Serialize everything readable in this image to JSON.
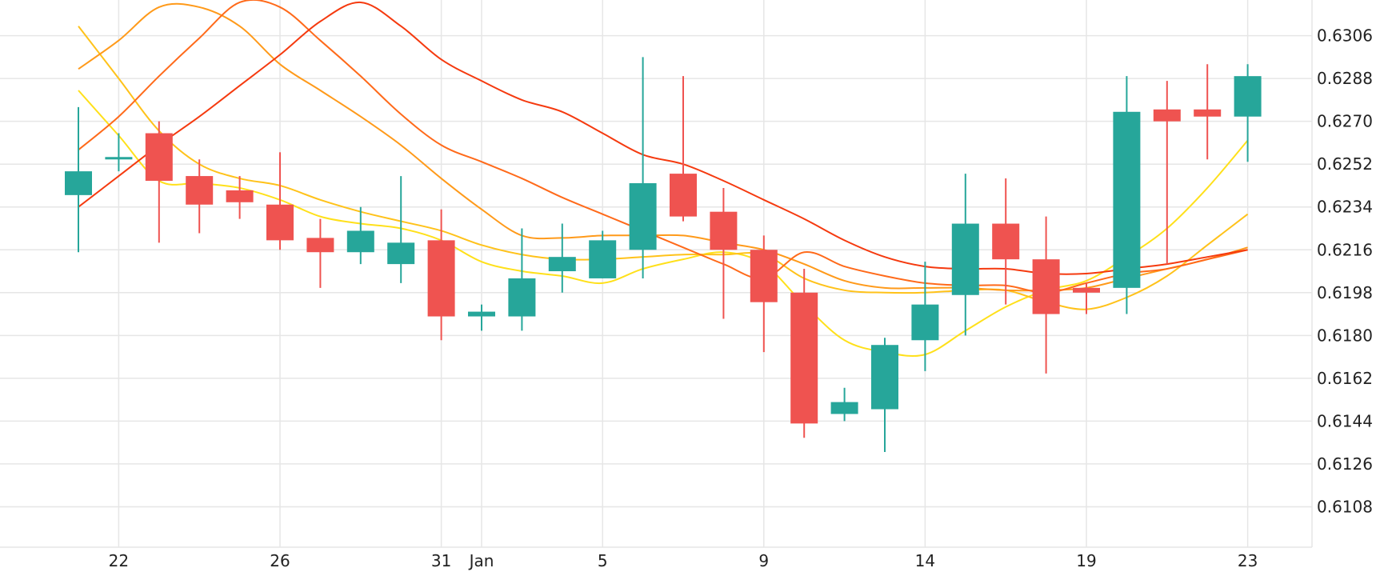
{
  "chart_data": {
    "type": "candlestick",
    "grid": true,
    "x_ticks": [
      {
        "i": 1,
        "label": "22"
      },
      {
        "i": 5,
        "label": "26"
      },
      {
        "i": 9,
        "label": "31"
      },
      {
        "i": 10,
        "label": "Jan"
      },
      {
        "i": 13,
        "label": "5"
      },
      {
        "i": 17,
        "label": "9"
      },
      {
        "i": 21,
        "label": "14"
      },
      {
        "i": 25,
        "label": "19"
      },
      {
        "i": 29,
        "label": "23"
      }
    ],
    "y_ticks": [
      "0.6108",
      "0.6126",
      "0.6144",
      "0.6162",
      "0.6180",
      "0.6198",
      "0.6216",
      "0.6234",
      "0.6252",
      "0.6270",
      "0.6288",
      "0.6306"
    ],
    "ylim": [
      0.6091,
      0.6321
    ],
    "colors": {
      "up": "#26a69a",
      "down": "#ef5350"
    },
    "candles": [
      {
        "o": 0.6239,
        "h": 0.6276,
        "l": 0.6215,
        "c": 0.6249
      },
      {
        "o": 0.6254,
        "h": 0.6265,
        "l": 0.6249,
        "c": 0.6255
      },
      {
        "o": 0.6265,
        "h": 0.627,
        "l": 0.6219,
        "c": 0.6245
      },
      {
        "o": 0.6247,
        "h": 0.6254,
        "l": 0.6223,
        "c": 0.6235
      },
      {
        "o": 0.6241,
        "h": 0.6247,
        "l": 0.6229,
        "c": 0.6236
      },
      {
        "o": 0.6235,
        "h": 0.6257,
        "l": 0.6216,
        "c": 0.622
      },
      {
        "o": 0.6221,
        "h": 0.6229,
        "l": 0.62,
        "c": 0.6215
      },
      {
        "o": 0.6215,
        "h": 0.6234,
        "l": 0.621,
        "c": 0.6224
      },
      {
        "o": 0.621,
        "h": 0.6247,
        "l": 0.6202,
        "c": 0.6219
      },
      {
        "o": 0.622,
        "h": 0.6233,
        "l": 0.6178,
        "c": 0.6188
      },
      {
        "o": 0.6188,
        "h": 0.6193,
        "l": 0.6182,
        "c": 0.619
      },
      {
        "o": 0.6188,
        "h": 0.6225,
        "l": 0.6182,
        "c": 0.6204
      },
      {
        "o": 0.6207,
        "h": 0.6227,
        "l": 0.6198,
        "c": 0.6213
      },
      {
        "o": 0.6204,
        "h": 0.6224,
        "l": 0.6204,
        "c": 0.622
      },
      {
        "o": 0.6216,
        "h": 0.6297,
        "l": 0.6204,
        "c": 0.6244
      },
      {
        "o": 0.6248,
        "h": 0.6289,
        "l": 0.6228,
        "c": 0.623
      },
      {
        "o": 0.6232,
        "h": 0.6242,
        "l": 0.6187,
        "c": 0.6216
      },
      {
        "o": 0.6216,
        "h": 0.6222,
        "l": 0.6173,
        "c": 0.6194
      },
      {
        "o": 0.6198,
        "h": 0.6208,
        "l": 0.6137,
        "c": 0.6143
      },
      {
        "o": 0.6147,
        "h": 0.6158,
        "l": 0.6144,
        "c": 0.6152
      },
      {
        "o": 0.6149,
        "h": 0.6179,
        "l": 0.6131,
        "c": 0.6176
      },
      {
        "o": 0.6178,
        "h": 0.6211,
        "l": 0.6165,
        "c": 0.6193
      },
      {
        "o": 0.6197,
        "h": 0.6248,
        "l": 0.618,
        "c": 0.6227
      },
      {
        "o": 0.6227,
        "h": 0.6246,
        "l": 0.6193,
        "c": 0.6212
      },
      {
        "o": 0.6212,
        "h": 0.623,
        "l": 0.6164,
        "c": 0.6189
      },
      {
        "o": 0.62,
        "h": 0.6202,
        "l": 0.6189,
        "c": 0.6198
      },
      {
        "o": 0.62,
        "h": 0.6289,
        "l": 0.6189,
        "c": 0.6274
      },
      {
        "o": 0.6275,
        "h": 0.6287,
        "l": 0.621,
        "c": 0.627
      },
      {
        "o": 0.6275,
        "h": 0.6294,
        "l": 0.6254,
        "c": 0.6272
      },
      {
        "o": 0.6272,
        "h": 0.6294,
        "l": 0.6253,
        "c": 0.6289
      }
    ],
    "series": [
      {
        "color": "#ffe01a",
        "values": [
          0.6283,
          0.6264,
          0.6245,
          0.6244,
          0.6242,
          0.6237,
          0.623,
          0.6227,
          0.6225,
          0.622,
          0.6211,
          0.6207,
          0.6205,
          0.6202,
          0.6208,
          0.6212,
          0.6215,
          0.621,
          0.6193,
          0.6178,
          0.6173,
          0.6172,
          0.6182,
          0.6192,
          0.6199,
          0.6203,
          0.6213,
          0.6225,
          0.6242,
          0.6262
        ]
      },
      {
        "color": "#ffc21a",
        "values": [
          0.631,
          0.6288,
          0.6266,
          0.6252,
          0.6246,
          0.6243,
          0.6237,
          0.6232,
          0.6228,
          0.6224,
          0.6218,
          0.6214,
          0.6212,
          0.6212,
          0.6213,
          0.6214,
          0.6214,
          0.6214,
          0.6204,
          0.6199,
          0.6198,
          0.6198,
          0.6199,
          0.6199,
          0.6194,
          0.6191,
          0.6196,
          0.6205,
          0.6218,
          0.6231
        ]
      },
      {
        "color": "#ff9a1a",
        "values": [
          0.6292,
          0.6304,
          0.6318,
          0.6318,
          0.631,
          0.6294,
          0.6283,
          0.6272,
          0.626,
          0.6246,
          0.6233,
          0.6222,
          0.6221,
          0.6222,
          0.6222,
          0.6222,
          0.6219,
          0.6216,
          0.621,
          0.6203,
          0.62,
          0.62,
          0.62,
          0.6199,
          0.6199,
          0.62,
          0.6204,
          0.6208,
          0.6212,
          0.6217
        ]
      },
      {
        "color": "#ff6a1a",
        "values": [
          0.6258,
          0.6272,
          0.6289,
          0.6305,
          0.632,
          0.6318,
          0.6304,
          0.6289,
          0.6273,
          0.626,
          0.6253,
          0.6246,
          0.6238,
          0.6231,
          0.6224,
          0.6217,
          0.621,
          0.6204,
          0.6215,
          0.6209,
          0.6205,
          0.6202,
          0.6201,
          0.6201,
          0.6198,
          0.6202,
          0.6206,
          0.6208,
          0.6212,
          0.6216
        ]
      },
      {
        "color": "#f53a0f",
        "values": [
          0.6234,
          0.6247,
          0.626,
          0.6272,
          0.6285,
          0.6298,
          0.6312,
          0.632,
          0.631,
          0.6296,
          0.6287,
          0.6279,
          0.6274,
          0.6265,
          0.6256,
          0.6252,
          0.6245,
          0.6237,
          0.6229,
          0.622,
          0.6213,
          0.6209,
          0.6208,
          0.6208,
          0.6206,
          0.6206,
          0.6208,
          0.621,
          0.6213,
          0.6216
        ]
      }
    ]
  }
}
